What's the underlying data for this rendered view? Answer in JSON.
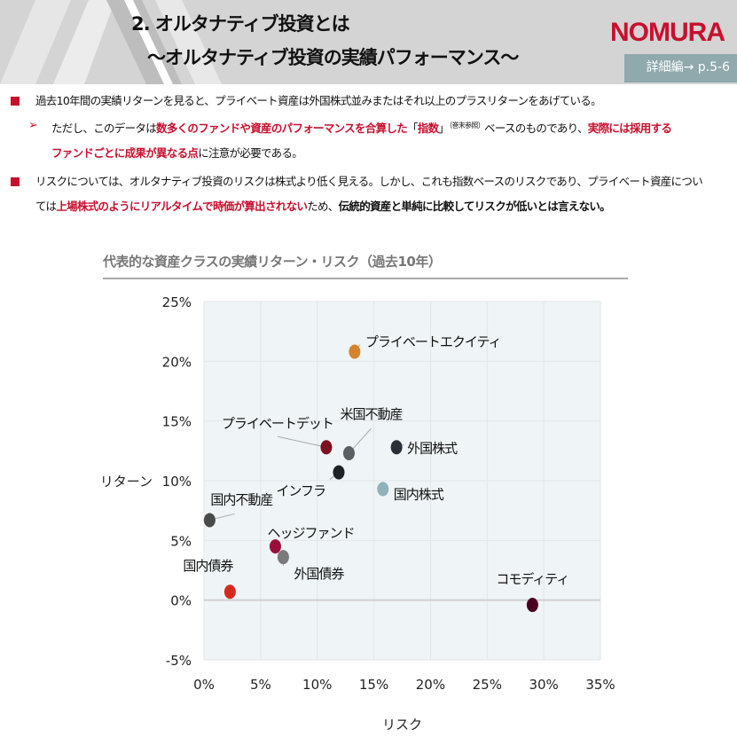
{
  "header": {
    "title_line1": "2. オルタナティブ投資とは",
    "title_line2": "～オルタナティブ投資の実績パフォーマンス～",
    "logo": "NOMURA",
    "reference": "詳細編→ p.5-6"
  },
  "bullets": {
    "b1": "過去10年間の実績リターンを見ると、プライベート資産は外国株式並みまたはそれ以上のプラスリターンをあげている。",
    "b2_a": "ただし、このデータは",
    "b2_b": "数多くのファンドや資産のパフォーマンスを合算した",
    "b2_c": "「",
    "b2_d": "指数",
    "b2_e": "」",
    "b2_sup": "（巻末参照）",
    "b2_f": "ベースのものであり、",
    "b2_g": "実際には採用する",
    "b2_h": "ファンドごとに成果が異なる点",
    "b2_i": "に注意が必要である。",
    "b3_a": "リスクについては、オルタナティブ投資のリスクは株式より低く見える。しかし、これも指数ベースのリスクであり、プライベート資産につい",
    "b3_b": "ては",
    "b3_c": "上場株式のようにリアルタイムで時価が算出されない",
    "b3_d": "ため、",
    "b3_e": "伝統的資産と単純に比較してリスクが低いとは言えない。"
  },
  "chart_data": {
    "type": "scatter",
    "title": "代表的な資産クラスの実績リターン・リスク（過去10年）",
    "xlabel": "リスク",
    "ylabel": "リターン",
    "xlim": [
      0,
      35
    ],
    "ylim": [
      -5,
      25
    ],
    "xticks": [
      "0%",
      "5%",
      "10%",
      "15%",
      "20%",
      "25%",
      "30%",
      "35%"
    ],
    "yticks": [
      "-5%",
      "0%",
      "5%",
      "10%",
      "15%",
      "20%",
      "25%"
    ],
    "grid": true,
    "points": [
      {
        "label": "プライベートエクイティ",
        "x": 13.3,
        "y": 20.8,
        "color": "#d4832a"
      },
      {
        "label": "プライベートデット",
        "x": 10.8,
        "y": 12.8,
        "color": "#7a1020"
      },
      {
        "label": "米国不動産",
        "x": 12.8,
        "y": 12.3,
        "color": "#5a5f63"
      },
      {
        "label": "外国株式",
        "x": 17.0,
        "y": 12.8,
        "color": "#2a2f38"
      },
      {
        "label": "インフラ",
        "x": 11.9,
        "y": 10.7,
        "color": "#1e2226"
      },
      {
        "label": "国内株式",
        "x": 15.8,
        "y": 9.3,
        "color": "#8fb3b8"
      },
      {
        "label": "国内不動産",
        "x": 0.5,
        "y": 6.7,
        "color": "#4a4a4a"
      },
      {
        "label": "ヘッジファンド",
        "x": 6.3,
        "y": 4.5,
        "color": "#9a0f3a"
      },
      {
        "label": "外国債券",
        "x": 7.0,
        "y": 3.6,
        "color": "#7a7a7a"
      },
      {
        "label": "国内債券",
        "x": 2.3,
        "y": 0.7,
        "color": "#d42a1e"
      },
      {
        "label": "コモディティ",
        "x": 29.0,
        "y": -0.4,
        "color": "#4a0020"
      }
    ]
  },
  "colors": {
    "accent": "#c8102e",
    "header_bg": "#d4d4d4",
    "plot_bg": "#eff4f6"
  }
}
